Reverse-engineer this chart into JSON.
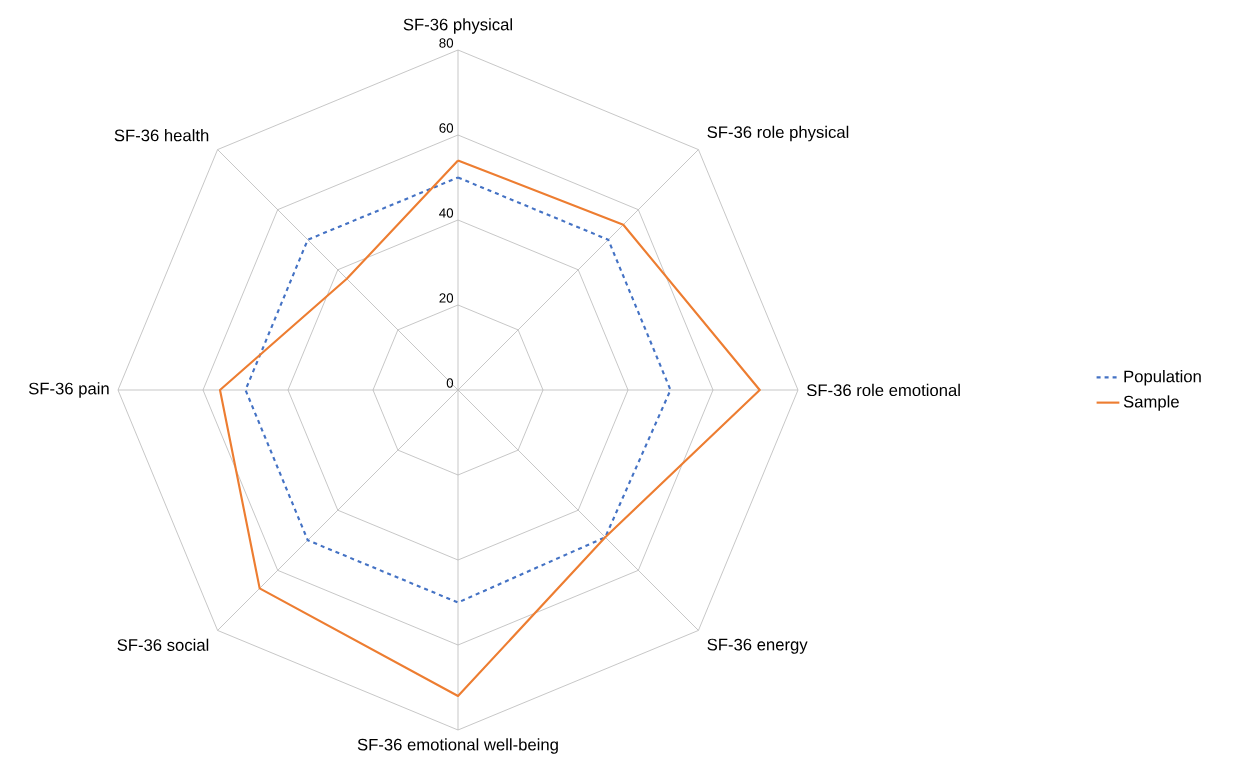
{
  "chart_data": {
    "type": "radar",
    "categories": [
      "SF-36 physical",
      "SF-36 role physical",
      "SF-36 role emotional",
      "SF-36 energy",
      "SF-36 emotional well-being",
      "SF-36 social",
      "SF-36 pain",
      "SF-36 health"
    ],
    "series": [
      {
        "name": "Population",
        "color": "#4472c4",
        "line_style": "dashed",
        "values": [
          50,
          50,
          50,
          49,
          50,
          50,
          50,
          50
        ]
      },
      {
        "name": "Sample",
        "color": "#ed7d31",
        "line_style": "solid",
        "values": [
          54,
          55,
          71,
          49,
          72,
          66,
          56,
          37
        ]
      }
    ],
    "ylim": [
      0,
      80
    ],
    "yticks": [
      0,
      20,
      40,
      60,
      80
    ],
    "grid": true,
    "legend": "right",
    "marker": "none"
  }
}
